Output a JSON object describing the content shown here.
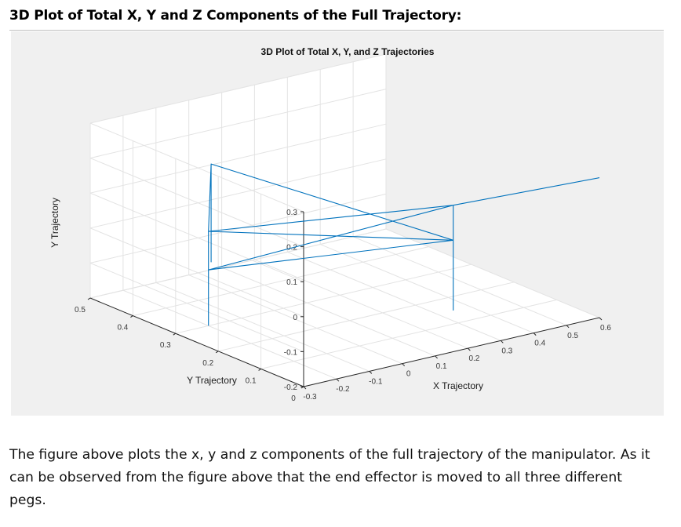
{
  "document": {
    "heading": "3D Plot of Total X, Y and Z Components of the Full Trajectory:",
    "paragraph_lines": [
      "The figure above plots the x, y and z components of the full trajectory of the manipulator. As it",
      "can be observed from the figure above that the end effector is moved to all three different",
      "pegs."
    ]
  },
  "chart_data": {
    "type": "line",
    "title": "3D Plot of Total X, Y, and Z Trajectories",
    "xlabel": "X Trajectory",
    "ylabel": "Y Trajectory",
    "zlabel": "Y Trajectory",
    "x_ticks": [
      "-0.3",
      "-0.2",
      "-0.1",
      "0",
      "0.1",
      "0.2",
      "0.3",
      "0.4",
      "0.5",
      "0.6"
    ],
    "y_ticks": [
      "0",
      "0.1",
      "0.2",
      "0.3",
      "0.4",
      "0.5"
    ],
    "z_ticks": [
      "0.3",
      "0.2",
      "0.1",
      "0",
      "-0.1",
      "-0.2"
    ],
    "xlim": [
      -0.3,
      0.6
    ],
    "ylim": [
      0,
      0.5
    ],
    "zlim": [
      -0.2,
      0.3
    ],
    "grid": true,
    "line_color": "#0072bd",
    "series": [
      {
        "points": [
          [
            -0.2,
            0.3,
            -0.2
          ],
          [
            -0.2,
            0.3,
            0.07
          ],
          [
            -0.01,
            0.44,
            0.15
          ],
          [
            -0.01,
            0.44,
            -0.13
          ],
          [
            -0.01,
            0.44,
            0.15
          ],
          [
            0.35,
            0.15,
            0.0
          ],
          [
            0.35,
            0.15,
            -0.2
          ],
          [
            0.35,
            0.15,
            0.1
          ],
          [
            -0.2,
            0.3,
            0.07
          ],
          [
            0.35,
            0.15,
            0.0
          ],
          [
            -0.2,
            0.3,
            -0.04
          ],
          [
            0.35,
            0.15,
            0.1
          ],
          [
            0.6,
            0.0,
            0.2
          ]
        ]
      }
    ]
  }
}
